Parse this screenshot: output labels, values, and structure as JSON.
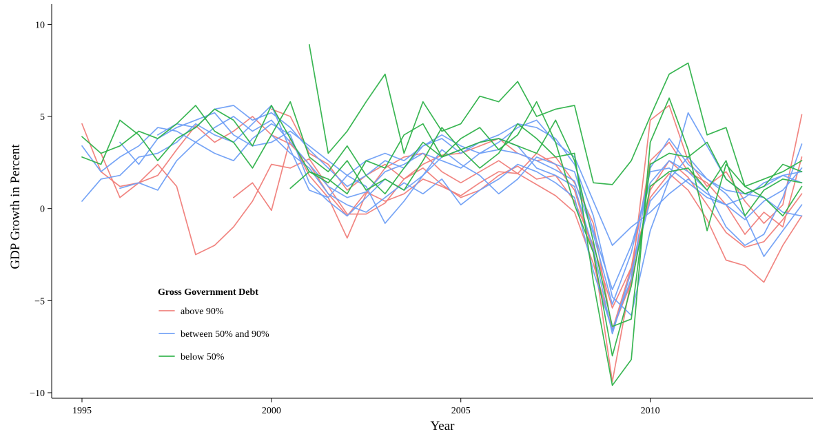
{
  "chart_data": {
    "type": "line",
    "title": "",
    "xlabel": "Year",
    "ylabel": "GDP Growth in Percent",
    "xlim": [
      1994.2,
      2014.3
    ],
    "ylim": [
      -10.3,
      11.1
    ],
    "x_ticks": [
      1995,
      2000,
      2005,
      2010
    ],
    "y_ticks": [
      -10,
      -5,
      0,
      5,
      10
    ],
    "y_tick_labels": [
      "−10",
      "−5",
      "0",
      "5",
      "10"
    ],
    "grid": false,
    "legend": {
      "title": "Gross Government Debt",
      "placement": "bottom-left",
      "entries": [
        {
          "label": "above 90%",
          "color": "#f07e7a"
        },
        {
          "label": "between 50% and 90%",
          "color": "#6f9ff5"
        },
        {
          "label": "below 50%",
          "color": "#2fb24a"
        }
      ]
    },
    "series": [
      {
        "group": "above 90%",
        "color": "#f07e7a",
        "x": [
          1995.0,
          1995.5,
          1996.0,
          1996.5,
          1997.0,
          1997.5,
          1998.0,
          1998.5,
          1999.0,
          1999.5,
          2000.0,
          2000.5,
          2001.0,
          2001.5,
          2002.0,
          2002.5,
          2003.0,
          2003.5,
          2004.0,
          2004.5,
          2005.0,
          2005.5,
          2006.0,
          2006.5,
          2007.0,
          2007.5,
          2008.0,
          2008.5,
          2009.0,
          2009.5,
          2010.0,
          2010.5,
          2011.0,
          2011.5,
          2012.0,
          2012.5,
          2013.0,
          2013.5,
          2014.0
        ],
        "y": [
          4.6,
          2.0,
          1.2,
          1.4,
          1.8,
          3.2,
          4.5,
          3.6,
          4.2,
          5.0,
          4.0,
          3.5,
          2.4,
          0.8,
          -0.4,
          0.9,
          0.4,
          0.8,
          1.6,
          1.2,
          0.7,
          1.4,
          2.0,
          1.9,
          1.3,
          0.7,
          -0.2,
          -3.0,
          -6.6,
          -4.0,
          1.0,
          2.6,
          1.7,
          0.2,
          -1.3,
          -2.1,
          -1.8,
          -0.6,
          0.8
        ]
      },
      {
        "group": "above 90%",
        "color": "#f07e7a",
        "x": [
          1995.5,
          1996.0,
          1996.5,
          1997.0,
          1997.5,
          1998.0,
          1998.5,
          1999.0,
          1999.5,
          2000.0,
          2000.5,
          2001.0,
          2001.5,
          2002.0,
          2002.5,
          2003.0,
          2003.5,
          2004.0,
          2004.5,
          2005.0,
          2005.5,
          2006.0,
          2006.5,
          2007.0,
          2007.5,
          2008.0,
          2008.5,
          2009.0,
          2009.5,
          2010.0,
          2010.5,
          2011.0,
          2011.5,
          2012.0,
          2012.5,
          2013.0,
          2013.5,
          2014.0
        ],
        "y": [
          3.0,
          0.6,
          1.4,
          2.4,
          1.2,
          -2.5,
          -2.0,
          -1.0,
          0.4,
          2.4,
          2.2,
          2.7,
          1.2,
          -0.3,
          -0.3,
          0.3,
          1.6,
          2.2,
          1.3,
          0.6,
          1.0,
          1.8,
          2.3,
          1.6,
          1.8,
          0.4,
          -2.0,
          -5.4,
          -3.2,
          0.6,
          1.9,
          1.0,
          -0.6,
          -2.8,
          -3.1,
          -4.0,
          -2.0,
          -0.4
        ]
      },
      {
        "group": "above 90%",
        "color": "#f07e7a",
        "x": [
          1999.0,
          1999.5,
          2000.0,
          2000.5,
          2001.0,
          2001.5,
          2002.0,
          2002.5,
          2003.0,
          2003.5,
          2004.0,
          2004.5,
          2005.0,
          2005.5,
          2006.0,
          2006.5,
          2007.0,
          2007.5,
          2008.0,
          2008.5,
          2009.0,
          2009.5,
          2010.0,
          2010.5,
          2011.0,
          2011.5,
          2012.0,
          2012.5,
          2013.0,
          2013.5,
          2014.0
        ],
        "y": [
          0.6,
          1.4,
          -0.1,
          3.8,
          1.8,
          0.6,
          -1.6,
          0.8,
          2.2,
          2.8,
          3.0,
          2.0,
          1.4,
          2.0,
          2.6,
          1.9,
          3.0,
          2.4,
          1.0,
          -2.4,
          -9.4,
          -3.8,
          4.8,
          5.6,
          2.6,
          1.2,
          2.0,
          0.4,
          -0.8,
          0.2,
          5.1
        ]
      },
      {
        "group": "above 90%",
        "color": "#f07e7a",
        "x": [
          2000.0,
          2000.5,
          2001.0,
          2001.5,
          2002.0,
          2002.5,
          2003.0,
          2003.5,
          2004.0,
          2004.5,
          2005.0,
          2005.5,
          2006.0,
          2006.5,
          2007.0,
          2007.5,
          2008.0,
          2008.5,
          2009.0,
          2009.5,
          2010.0,
          2010.5,
          2011.0,
          2011.5,
          2012.0,
          2012.5,
          2013.0,
          2013.5,
          2014.0
        ],
        "y": [
          5.4,
          5.0,
          3.0,
          2.4,
          1.0,
          1.8,
          2.4,
          1.6,
          2.4,
          2.9,
          3.0,
          3.4,
          3.8,
          3.0,
          2.6,
          2.8,
          1.4,
          -0.8,
          -6.6,
          -3.2,
          2.6,
          3.6,
          2.0,
          1.4,
          0.2,
          -1.4,
          -0.2,
          -1.0,
          2.8
        ]
      },
      {
        "group": "between 50% and 90%",
        "color": "#6f9ff5",
        "x": [
          1995.0,
          1995.5,
          1996.0,
          1996.5,
          1997.0,
          1997.5,
          1998.0,
          1998.5,
          1999.0,
          1999.5,
          2000.0,
          2000.5,
          2001.0,
          2001.5,
          2002.0,
          2002.5,
          2003.0,
          2003.5,
          2004.0,
          2004.5,
          2005.0,
          2005.5,
          2006.0,
          2006.5,
          2007.0,
          2007.5,
          2008.0,
          2008.5,
          2009.0,
          2009.5,
          2010.0,
          2010.5,
          2011.0,
          2011.5,
          2012.0,
          2012.5,
          2013.0,
          2013.5,
          2014.0
        ],
        "y": [
          3.4,
          2.0,
          2.8,
          3.4,
          4.4,
          4.2,
          3.6,
          4.4,
          5.0,
          4.2,
          4.8,
          3.6,
          2.4,
          1.2,
          0.6,
          0.9,
          2.0,
          2.4,
          3.0,
          2.6,
          2.2,
          3.0,
          3.2,
          3.0,
          2.6,
          2.1,
          1.5,
          -1.4,
          -5.2,
          -2.4,
          2.0,
          2.2,
          1.4,
          0.6,
          0.2,
          -0.6,
          0.4,
          1.0,
          2.2
        ]
      },
      {
        "group": "between 50% and 90%",
        "color": "#6f9ff5",
        "x": [
          1995.0,
          1995.5,
          1996.0,
          1996.5,
          1997.0,
          1997.5,
          1998.0,
          1998.5,
          1999.0,
          1999.5,
          2000.0,
          2000.5,
          2001.0,
          2001.5,
          2002.0,
          2002.5,
          2003.0,
          2003.5,
          2004.0,
          2004.5,
          2005.0,
          2005.5,
          2006.0,
          2006.5,
          2007.0,
          2007.5,
          2008.0,
          2008.5,
          2009.0,
          2009.5,
          2010.0,
          2010.5,
          2011.0,
          2011.5,
          2012.0,
          2012.5,
          2013.0,
          2013.5,
          2014.0
        ],
        "y": [
          0.4,
          1.6,
          1.8,
          2.8,
          3.0,
          3.6,
          4.6,
          4.0,
          3.6,
          4.6,
          5.6,
          3.2,
          1.0,
          0.6,
          1.8,
          1.2,
          -0.8,
          0.4,
          1.8,
          3.2,
          2.4,
          1.8,
          0.8,
          1.6,
          2.8,
          2.4,
          2.0,
          -1.2,
          -4.4,
          -2.0,
          1.4,
          2.6,
          2.0,
          1.0,
          -1.0,
          -2.0,
          -1.4,
          0.6,
          3.5
        ]
      },
      {
        "group": "between 50% and 90%",
        "color": "#6f9ff5",
        "x": [
          1996.0,
          1996.5,
          1997.0,
          1997.5,
          1998.0,
          1998.5,
          1999.0,
          1999.5,
          2000.0,
          2000.5,
          2001.0,
          2001.5,
          2002.0,
          2002.5,
          2003.0,
          2003.5,
          2004.0,
          2004.5,
          2005.0,
          2005.5,
          2006.0,
          2006.5,
          2007.0,
          2007.5,
          2008.0,
          2008.5,
          2009.0,
          2009.5,
          2010.0,
          2010.5,
          2011.0,
          2011.5,
          2012.0,
          2012.5,
          2013.0,
          2013.5,
          2014.0
        ],
        "y": [
          1.1,
          1.4,
          1.0,
          2.6,
          3.6,
          3.0,
          2.6,
          3.8,
          4.6,
          4.0,
          1.4,
          0.4,
          -0.4,
          0.6,
          1.6,
          1.0,
          1.8,
          2.8,
          3.2,
          3.6,
          3.8,
          3.4,
          2.2,
          1.8,
          1.2,
          -2.2,
          -6.8,
          -3.4,
          0.4,
          1.6,
          2.8,
          1.6,
          0.8,
          -0.4,
          -2.6,
          -1.2,
          0.2
        ]
      },
      {
        "group": "between 50% and 90%",
        "color": "#6f9ff5",
        "x": [
          1996.0,
          1996.5,
          1997.0,
          1997.5,
          1998.0,
          1998.5,
          1999.0,
          1999.5,
          2000.0,
          2000.5,
          2001.0,
          2001.5,
          2002.0,
          2002.5,
          2003.0,
          2003.5,
          2004.0,
          2004.5,
          2005.0,
          2005.5,
          2006.0,
          2006.5,
          2007.0,
          2007.5,
          2008.0,
          2008.5,
          2009.0,
          2009.5,
          2010.0,
          2010.5,
          2011.0,
          2011.5,
          2012.0,
          2012.5,
          2013.0,
          2013.5,
          2014.0
        ],
        "y": [
          3.6,
          2.4,
          3.8,
          4.4,
          4.8,
          5.2,
          4.0,
          3.4,
          3.6,
          4.2,
          3.4,
          2.6,
          1.8,
          2.6,
          3.0,
          2.6,
          3.4,
          4.0,
          3.4,
          3.0,
          3.6,
          4.4,
          4.8,
          3.6,
          2.8,
          0.4,
          -2.0,
          -1.0,
          -0.2,
          0.8,
          1.6,
          0.8,
          0.2,
          0.6,
          1.4,
          1.8,
          1.4
        ]
      },
      {
        "group": "between 50% and 90%",
        "color": "#6f9ff5",
        "x": [
          1997.0,
          1997.5,
          1998.0,
          1998.5,
          1999.0,
          1999.5,
          2000.0,
          2000.5,
          2001.0,
          2001.5,
          2002.0,
          2002.5,
          2003.0,
          2003.5,
          2004.0,
          2004.5,
          2005.0,
          2005.5,
          2006.0,
          2006.5,
          2007.0,
          2007.5,
          2008.0,
          2008.5,
          2009.0,
          2009.5,
          2010.0,
          2010.5,
          2011.0,
          2011.5,
          2012.0,
          2012.5,
          2013.0,
          2013.5,
          2014.0
        ],
        "y": [
          4.0,
          4.6,
          4.4,
          5.4,
          5.6,
          4.8,
          5.2,
          4.4,
          3.2,
          2.2,
          1.2,
          1.8,
          2.6,
          2.2,
          3.4,
          3.8,
          3.0,
          3.6,
          4.0,
          4.6,
          4.4,
          3.8,
          2.4,
          -0.4,
          -4.8,
          -5.8,
          -1.2,
          1.6,
          5.2,
          3.4,
          1.6,
          0.8,
          0.6,
          -0.2,
          -0.4
        ]
      },
      {
        "group": "between 50% and 90%",
        "color": "#6f9ff5",
        "x": [
          2000.0,
          2000.5,
          2001.0,
          2001.5,
          2002.0,
          2002.5,
          2003.0,
          2003.5,
          2004.0,
          2004.5,
          2005.0,
          2005.5,
          2006.0,
          2006.5,
          2007.0,
          2007.5,
          2008.0,
          2008.5,
          2009.0,
          2009.5,
          2010.0,
          2010.5,
          2011.0,
          2011.5,
          2012.0,
          2012.5,
          2013.0,
          2013.5,
          2014.0
        ],
        "y": [
          4.0,
          3.0,
          2.2,
          0.8,
          0.2,
          -0.2,
          0.6,
          1.4,
          0.8,
          1.6,
          0.2,
          1.0,
          1.6,
          2.4,
          2.0,
          1.4,
          0.6,
          -3.4,
          -6.6,
          -3.8,
          2.2,
          3.8,
          2.4,
          1.6,
          1.0,
          0.8,
          1.2,
          1.8,
          2.0
        ]
      },
      {
        "group": "below 50%",
        "color": "#2fb24a",
        "x": [
          1995.0,
          1995.5,
          1996.0,
          1996.5,
          1997.0,
          1997.5,
          1998.0,
          1998.5,
          1999.0,
          1999.5,
          2000.0,
          2000.5,
          2001.0,
          2001.5,
          2002.0,
          2002.5,
          2003.0,
          2003.5,
          2004.0,
          2004.5,
          2005.0,
          2005.5,
          2006.0,
          2006.5,
          2007.0,
          2007.5,
          2008.0,
          2008.5,
          2009.0,
          2009.5,
          2010.0,
          2010.5,
          2011.0,
          2011.5,
          2012.0,
          2012.5,
          2013.0,
          2013.5,
          2014.0
        ],
        "y": [
          3.9,
          3.0,
          3.4,
          4.2,
          3.8,
          4.6,
          5.6,
          4.2,
          3.6,
          2.2,
          4.0,
          5.8,
          2.8,
          2.0,
          3.4,
          1.8,
          0.8,
          2.2,
          3.6,
          2.8,
          3.2,
          3.6,
          3.8,
          3.4,
          3.0,
          4.8,
          2.6,
          -1.8,
          -6.4,
          -6.0,
          2.4,
          3.0,
          2.8,
          3.6,
          1.6,
          0.8,
          1.2,
          2.4,
          2.0
        ]
      },
      {
        "group": "below 50%",
        "color": "#2fb24a",
        "x": [
          1995.0,
          1995.5,
          1996.0,
          1996.5,
          1997.0,
          1997.5,
          1998.0,
          1998.5,
          1999.0,
          1999.5,
          2000.0,
          2000.5,
          2001.0,
          2001.5,
          2002.0,
          2002.5,
          2003.0,
          2003.5,
          2004.0,
          2004.5,
          2005.0,
          2005.5,
          2006.0,
          2006.5,
          2007.0,
          2007.5,
          2008.0,
          2008.5,
          2009.0,
          2009.5,
          2010.0,
          2010.5,
          2011.0,
          2011.5,
          2012.0,
          2012.5,
          2013.0,
          2013.5,
          2014.0
        ],
        "y": [
          2.8,
          2.4,
          4.8,
          4.0,
          2.6,
          3.8,
          4.4,
          5.4,
          4.8,
          3.4,
          5.6,
          3.8,
          2.0,
          1.4,
          2.6,
          1.0,
          1.6,
          1.0,
          2.6,
          4.4,
          3.2,
          2.2,
          3.0,
          4.6,
          3.8,
          2.8,
          3.0,
          -4.0,
          -9.6,
          -8.2,
          3.6,
          6.0,
          3.2,
          -1.2,
          2.4,
          1.2,
          0.6,
          -0.4,
          1.2
        ]
      },
      {
        "group": "below 50%",
        "color": "#2fb24a",
        "x": [
          2001.0,
          2001.5,
          2002.0,
          2002.5,
          2003.0,
          2003.5,
          2004.0,
          2004.5,
          2005.0,
          2005.5,
          2006.0,
          2006.5,
          2007.0,
          2007.5,
          2008.0,
          2008.5,
          2009.0,
          2009.5,
          2010.0,
          2010.5,
          2011.0,
          2011.5,
          2012.0,
          2012.5,
          2013.0,
          2013.5,
          2014.0
        ],
        "y": [
          8.9,
          3.0,
          4.2,
          5.8,
          7.3,
          3.0,
          5.8,
          4.2,
          4.6,
          6.1,
          5.8,
          6.9,
          5.0,
          5.4,
          5.6,
          1.4,
          1.3,
          2.6,
          5.0,
          7.3,
          7.9,
          4.0,
          4.4,
          1.2,
          1.6,
          2.0,
          2.6
        ]
      },
      {
        "group": "below 50%",
        "color": "#2fb24a",
        "x": [
          2000.5,
          2001.0,
          2001.5,
          2002.0,
          2002.5,
          2003.0,
          2003.5,
          2004.0,
          2004.5,
          2005.0,
          2005.5,
          2006.0,
          2006.5,
          2007.0,
          2007.5,
          2008.0,
          2008.5,
          2009.0,
          2009.5,
          2010.0,
          2010.5,
          2011.0,
          2011.5,
          2012.0,
          2012.5,
          2013.0,
          2013.5,
          2014.0
        ],
        "y": [
          1.1,
          2.0,
          1.6,
          0.8,
          2.6,
          2.2,
          4.0,
          4.6,
          2.8,
          3.8,
          4.4,
          3.2,
          4.0,
          5.8,
          3.6,
          0.2,
          -2.4,
          -8.0,
          -4.2,
          1.2,
          2.0,
          2.2,
          1.0,
          2.6,
          -0.4,
          1.0,
          1.6,
          1.4
        ]
      }
    ]
  }
}
